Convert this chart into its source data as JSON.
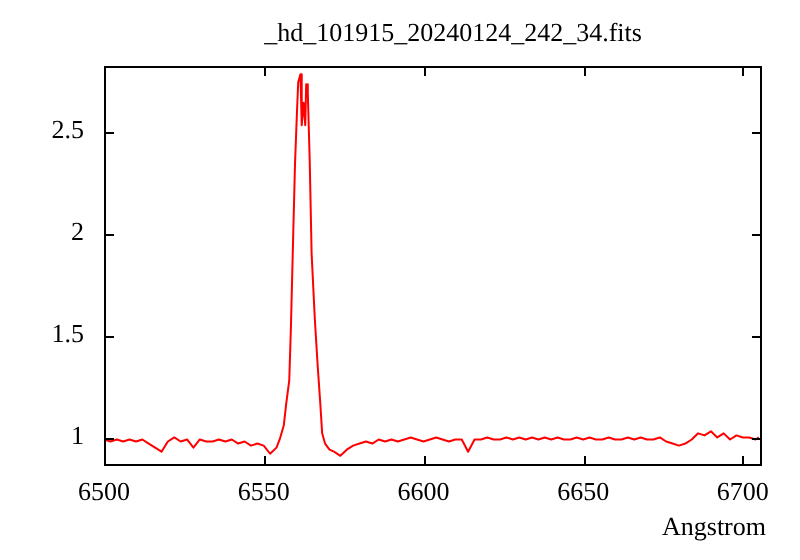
{
  "chart_data": {
    "type": "line",
    "title": "_hd_101915_20240124_242_34.fits",
    "xlabel": "Angstrom",
    "color": "#ff0000",
    "grid": false,
    "legend": false,
    "marker": "none",
    "line_style": "solid",
    "xlim": [
      6500,
      6706
    ],
    "xticks": [
      6500,
      6550,
      6600,
      6650,
      6700
    ],
    "ylim": [
      0.86,
      2.82
    ],
    "yticks": [
      1,
      1.5,
      2,
      2.5
    ],
    "x": [
      6500,
      6502,
      6504,
      6506,
      6508,
      6510,
      6512,
      6514,
      6516,
      6518,
      6520,
      6522,
      6524,
      6526,
      6528,
      6530,
      6532,
      6534,
      6536,
      6538,
      6540,
      6542,
      6544,
      6546,
      6548,
      6550,
      6552,
      6554,
      6555,
      6556.3,
      6557,
      6558,
      6558.5,
      6559.2,
      6559.8,
      6560.4,
      6560.8,
      6561.5,
      6561.9,
      6562.5,
      6563,
      6563.3,
      6563.8,
      6564.4,
      6565,
      6566,
      6566.9,
      6567.7,
      6568.3,
      6569.2,
      6570.6,
      6572,
      6574,
      6576,
      6578,
      6580,
      6582,
      6584,
      6586,
      6588,
      6590,
      6592,
      6594,
      6596,
      6598,
      6600,
      6602,
      6604,
      6606,
      6608,
      6610,
      6612,
      6614,
      6616,
      6618,
      6620,
      6622,
      6624,
      6626,
      6628,
      6630,
      6632,
      6634,
      6636,
      6638,
      6640,
      6642,
      6644,
      6646,
      6648,
      6650,
      6652,
      6654,
      6656,
      6658,
      6660,
      6662,
      6664,
      6666,
      6668,
      6670,
      6672,
      6674,
      6676,
      6678,
      6680,
      6682,
      6684,
      6686,
      6688,
      6690,
      6692,
      6694,
      6696,
      6698,
      6700,
      6702,
      6704,
      6705
    ],
    "values": [
      0.99,
      0.98,
      0.99,
      0.98,
      0.99,
      0.98,
      0.99,
      0.97,
      0.95,
      0.93,
      0.98,
      1.0,
      0.98,
      0.99,
      0.95,
      0.99,
      0.98,
      0.98,
      0.99,
      0.98,
      0.99,
      0.97,
      0.98,
      0.96,
      0.97,
      0.96,
      0.92,
      0.95,
      0.99,
      1.06,
      1.16,
      1.28,
      1.53,
      1.97,
      2.34,
      2.59,
      2.74,
      2.78,
      2.53,
      2.64,
      2.53,
      2.73,
      2.69,
      2.36,
      1.9,
      1.58,
      1.35,
      1.17,
      1.02,
      0.97,
      0.94,
      0.93,
      0.91,
      0.94,
      0.96,
      0.97,
      0.98,
      0.97,
      0.99,
      0.98,
      0.99,
      0.98,
      0.99,
      1.0,
      0.99,
      0.98,
      0.99,
      1.0,
      0.99,
      0.98,
      0.99,
      0.99,
      0.93,
      0.99,
      0.99,
      1.0,
      0.99,
      0.99,
      1.0,
      0.99,
      1.0,
      0.99,
      1.0,
      0.99,
      1.0,
      0.99,
      1.0,
      0.99,
      0.99,
      1.0,
      0.99,
      1.0,
      0.99,
      0.99,
      1.0,
      0.99,
      0.99,
      1.0,
      0.99,
      1.0,
      0.99,
      0.99,
      1.0,
      0.98,
      0.97,
      0.96,
      0.97,
      0.99,
      1.02,
      1.01,
      1.03,
      1.0,
      1.02,
      0.99,
      1.01,
      1.0,
      1.0,
      0.99,
      1.0
    ]
  }
}
